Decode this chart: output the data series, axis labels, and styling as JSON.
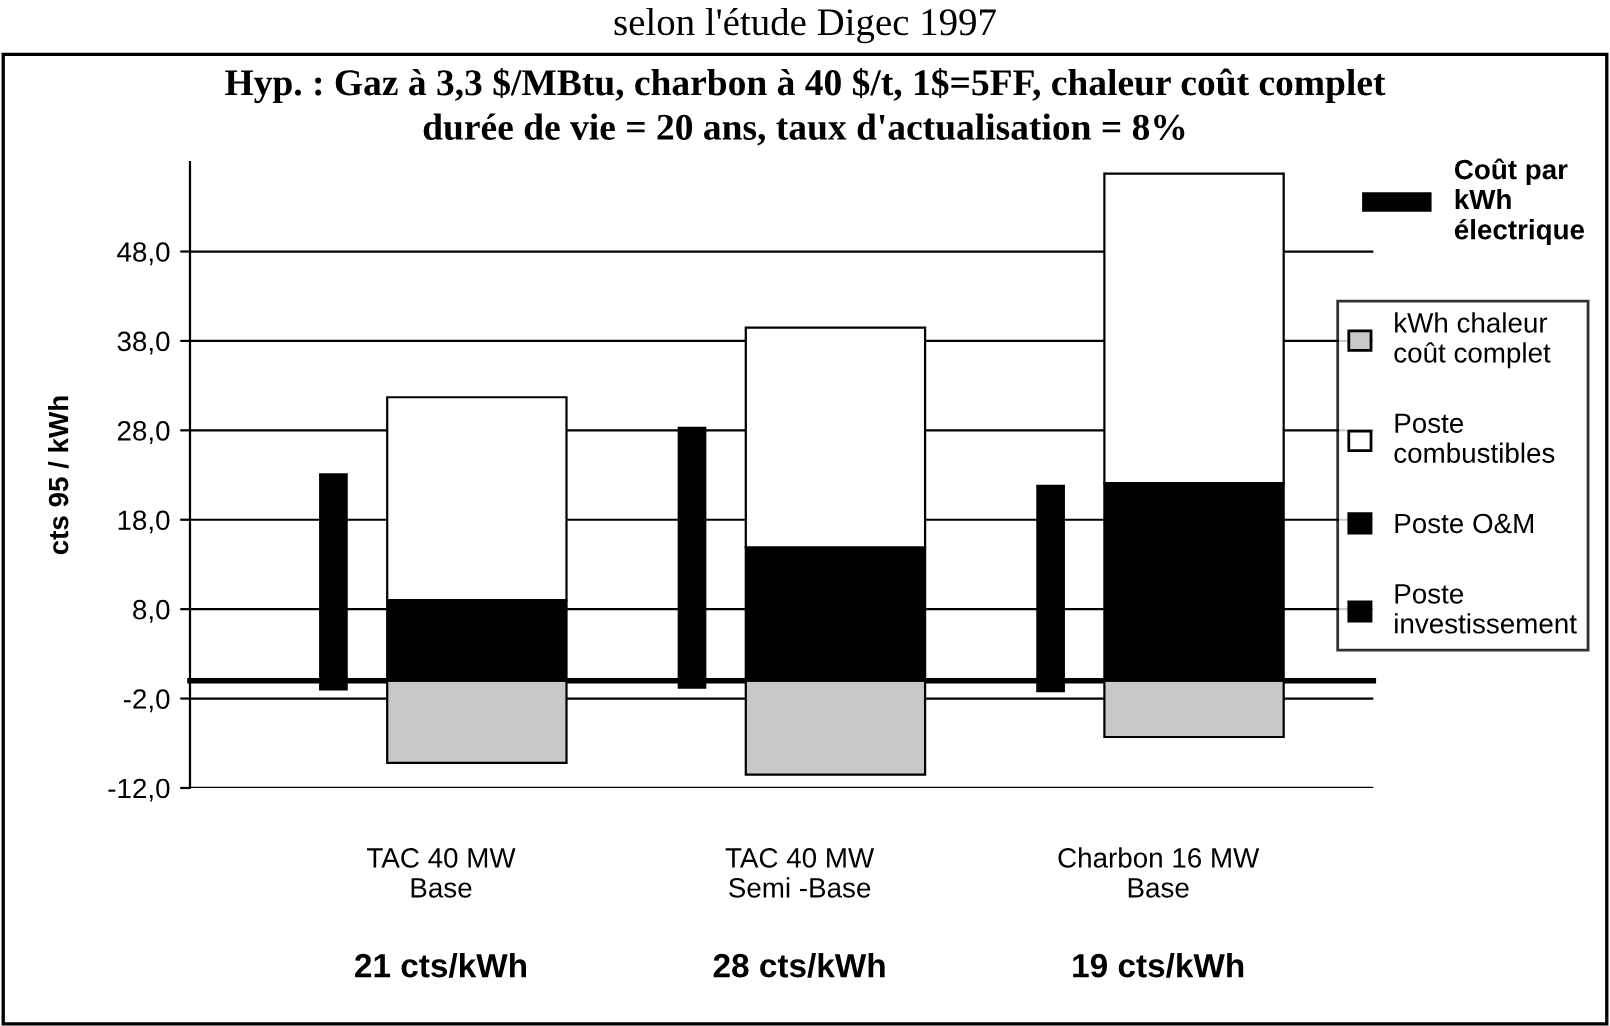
{
  "chart_data": {
    "type": "bar",
    "title": "Hyp. : Gaz à 3,3 $/MBtu, charbon à 40 $/t, 1$=5FF, chaleur coût complet\ndurée de vie = 20 ans, taux d'actualisation = 8%",
    "subtitle": "selon l'étude Digec 1997",
    "ylabel": "cts 95 / kWh",
    "categories": [
      "TAC 40 MW\nBase",
      "TAC 40 MW\nSemi -Base",
      "Charbon 16 MW\nBase"
    ],
    "series": [
      {
        "name": "Coût par kWh électrique",
        "color": "#000000",
        "values": [
          24.3,
          29.3,
          23.2
        ],
        "base": [
          -1.1,
          -0.9,
          -1.3
        ]
      },
      {
        "name": "kWh chaleur coût complet",
        "color": "#c8c8c8",
        "values": [
          -9.2,
          -10.5,
          -6.3
        ],
        "base": [
          0,
          0,
          0
        ]
      },
      {
        "name": "Poste investissement",
        "color": "#000000",
        "values": [
          9.0,
          14.9,
          22.1
        ],
        "base": [
          0,
          0,
          0
        ]
      },
      {
        "name": "Poste O&M",
        "color": "#000000",
        "values": [
          null,
          null,
          null
        ],
        "base": [
          null,
          null,
          null
        ]
      },
      {
        "name": "Poste combustibles",
        "color": "#ffffff",
        "values": [
          22.7,
          24.6,
          34.6
        ],
        "base": [
          9.0,
          14.9,
          22.1
        ]
      }
    ],
    "ylim": [
      -12,
      58
    ],
    "yticks": [
      {
        "value": -12,
        "label": "-12,0"
      },
      {
        "value": -2,
        "label": "-2,0"
      },
      {
        "value": 8,
        "label": "8,0"
      },
      {
        "value": 18,
        "label": "18,0"
      },
      {
        "value": 28,
        "label": "28,0"
      },
      {
        "value": 38,
        "label": "38,0"
      },
      {
        "value": 48,
        "label": "48,0"
      }
    ],
    "grid": "y",
    "legend": "right",
    "annotations": [
      "21 cts/kWh",
      "28 cts/kWh",
      "19 cts/kWh"
    ]
  }
}
